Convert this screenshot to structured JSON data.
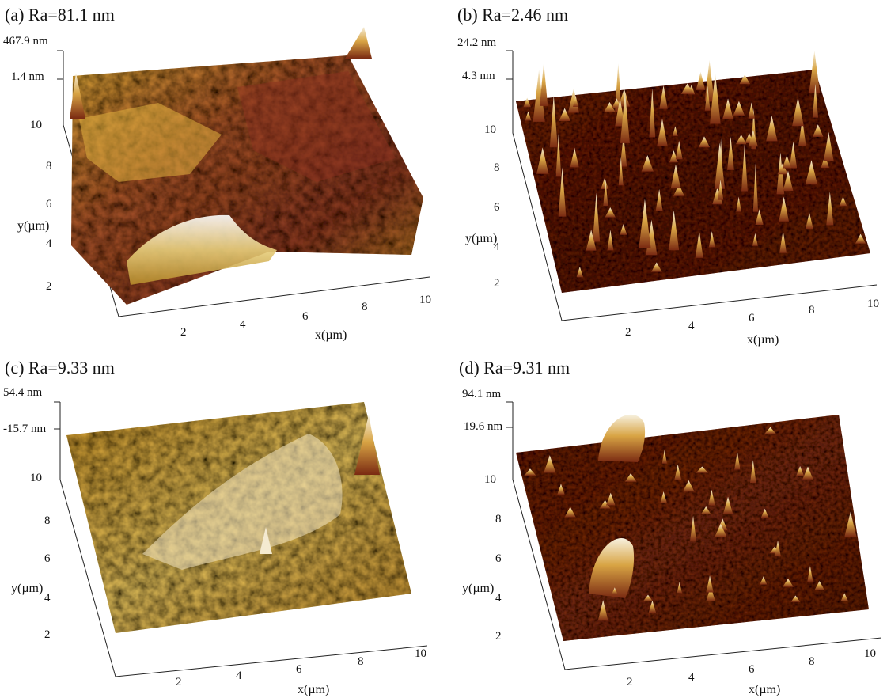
{
  "panels": [
    {
      "id": "a",
      "title": "(a) Ra=81.1 nm",
      "z_max": "467.9 nm",
      "z_min": "1.4 nm",
      "x_label": "x(µm)",
      "y_label": "y(µm)",
      "x_ticks": [
        "2",
        "4",
        "6",
        "8",
        "10"
      ],
      "y_ticks": [
        "2",
        "4",
        "6",
        "8",
        "10"
      ],
      "palette": {
        "low": "#5a1414",
        "mid": "#a8551e",
        "high": "#e0b13a",
        "peak": "#f6f0dc"
      }
    },
    {
      "id": "b",
      "title": "(b) Ra=2.46 nm",
      "z_max": "24.2 nm",
      "z_min": "4.3 nm",
      "x_label": "x(µm)",
      "y_label": "y(µm)",
      "x_ticks": [
        "2",
        "4",
        "6",
        "8",
        "10"
      ],
      "y_ticks": [
        "2",
        "4",
        "6",
        "8",
        "10"
      ],
      "palette": {
        "low": "#3e0a08",
        "mid": "#7a2a14",
        "high": "#b8742c",
        "peak": "#f2ead8"
      }
    },
    {
      "id": "c",
      "title": "(c) Ra=9.33 nm",
      "z_max": "54.4 nm",
      "z_min": "-15.7 nm",
      "x_label": "x(µm)",
      "y_label": "y(µm)",
      "x_ticks": [
        "2",
        "4",
        "6",
        "8",
        "10"
      ],
      "y_ticks": [
        "2",
        "4",
        "6",
        "8",
        "10"
      ],
      "palette": {
        "low": "#8a5a12",
        "mid": "#c9962e",
        "high": "#e8cf72",
        "peak": "#f8f2e2"
      }
    },
    {
      "id": "d",
      "title": "(d) Ra=9.31 nm",
      "z_max": "94.1 nm",
      "z_min": "19.6 nm",
      "x_label": "x(µm)",
      "y_label": "y(µm)",
      "x_ticks": [
        "2",
        "4",
        "6",
        "8",
        "10"
      ],
      "y_ticks": [
        "2",
        "4",
        "6",
        "8",
        "10"
      ],
      "palette": {
        "low": "#3e0c08",
        "mid": "#7e2c14",
        "high": "#b26a2a",
        "peak": "#f4ecd8"
      }
    }
  ]
}
